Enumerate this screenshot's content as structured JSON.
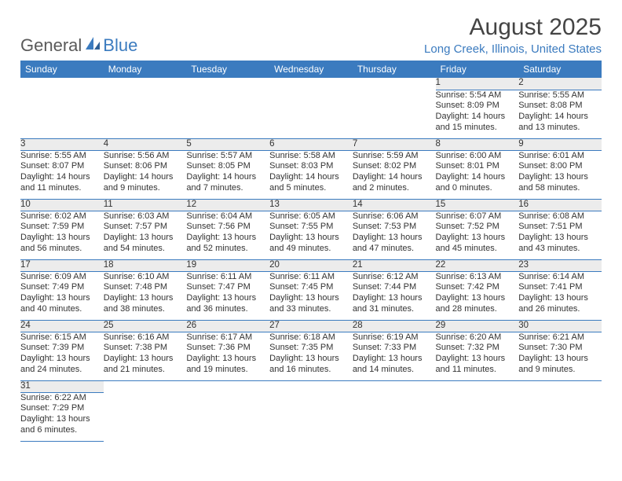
{
  "logo": {
    "text_left": "General",
    "text_right": "Blue",
    "accent_color": "#3b7bbf"
  },
  "title": {
    "month": "August 2025",
    "location": "Long Creek, Illinois, United States"
  },
  "colors": {
    "header_bg": "#3b7bbf",
    "header_text": "#ffffff",
    "daynum_bg": "#ececec",
    "row_border": "#3b7bbf"
  },
  "weekdays": [
    "Sunday",
    "Monday",
    "Tuesday",
    "Wednesday",
    "Thursday",
    "Friday",
    "Saturday"
  ],
  "weeks": [
    [
      null,
      null,
      null,
      null,
      null,
      {
        "n": "1",
        "sr": "5:54 AM",
        "ss": "8:09 PM",
        "dl": "14 hours and 15 minutes."
      },
      {
        "n": "2",
        "sr": "5:55 AM",
        "ss": "8:08 PM",
        "dl": "14 hours and 13 minutes."
      }
    ],
    [
      {
        "n": "3",
        "sr": "5:55 AM",
        "ss": "8:07 PM",
        "dl": "14 hours and 11 minutes."
      },
      {
        "n": "4",
        "sr": "5:56 AM",
        "ss": "8:06 PM",
        "dl": "14 hours and 9 minutes."
      },
      {
        "n": "5",
        "sr": "5:57 AM",
        "ss": "8:05 PM",
        "dl": "14 hours and 7 minutes."
      },
      {
        "n": "6",
        "sr": "5:58 AM",
        "ss": "8:03 PM",
        "dl": "14 hours and 5 minutes."
      },
      {
        "n": "7",
        "sr": "5:59 AM",
        "ss": "8:02 PM",
        "dl": "14 hours and 2 minutes."
      },
      {
        "n": "8",
        "sr": "6:00 AM",
        "ss": "8:01 PM",
        "dl": "14 hours and 0 minutes."
      },
      {
        "n": "9",
        "sr": "6:01 AM",
        "ss": "8:00 PM",
        "dl": "13 hours and 58 minutes."
      }
    ],
    [
      {
        "n": "10",
        "sr": "6:02 AM",
        "ss": "7:59 PM",
        "dl": "13 hours and 56 minutes."
      },
      {
        "n": "11",
        "sr": "6:03 AM",
        "ss": "7:57 PM",
        "dl": "13 hours and 54 minutes."
      },
      {
        "n": "12",
        "sr": "6:04 AM",
        "ss": "7:56 PM",
        "dl": "13 hours and 52 minutes."
      },
      {
        "n": "13",
        "sr": "6:05 AM",
        "ss": "7:55 PM",
        "dl": "13 hours and 49 minutes."
      },
      {
        "n": "14",
        "sr": "6:06 AM",
        "ss": "7:53 PM",
        "dl": "13 hours and 47 minutes."
      },
      {
        "n": "15",
        "sr": "6:07 AM",
        "ss": "7:52 PM",
        "dl": "13 hours and 45 minutes."
      },
      {
        "n": "16",
        "sr": "6:08 AM",
        "ss": "7:51 PM",
        "dl": "13 hours and 43 minutes."
      }
    ],
    [
      {
        "n": "17",
        "sr": "6:09 AM",
        "ss": "7:49 PM",
        "dl": "13 hours and 40 minutes."
      },
      {
        "n": "18",
        "sr": "6:10 AM",
        "ss": "7:48 PM",
        "dl": "13 hours and 38 minutes."
      },
      {
        "n": "19",
        "sr": "6:11 AM",
        "ss": "7:47 PM",
        "dl": "13 hours and 36 minutes."
      },
      {
        "n": "20",
        "sr": "6:11 AM",
        "ss": "7:45 PM",
        "dl": "13 hours and 33 minutes."
      },
      {
        "n": "21",
        "sr": "6:12 AM",
        "ss": "7:44 PM",
        "dl": "13 hours and 31 minutes."
      },
      {
        "n": "22",
        "sr": "6:13 AM",
        "ss": "7:42 PM",
        "dl": "13 hours and 28 minutes."
      },
      {
        "n": "23",
        "sr": "6:14 AM",
        "ss": "7:41 PM",
        "dl": "13 hours and 26 minutes."
      }
    ],
    [
      {
        "n": "24",
        "sr": "6:15 AM",
        "ss": "7:39 PM",
        "dl": "13 hours and 24 minutes."
      },
      {
        "n": "25",
        "sr": "6:16 AM",
        "ss": "7:38 PM",
        "dl": "13 hours and 21 minutes."
      },
      {
        "n": "26",
        "sr": "6:17 AM",
        "ss": "7:36 PM",
        "dl": "13 hours and 19 minutes."
      },
      {
        "n": "27",
        "sr": "6:18 AM",
        "ss": "7:35 PM",
        "dl": "13 hours and 16 minutes."
      },
      {
        "n": "28",
        "sr": "6:19 AM",
        "ss": "7:33 PM",
        "dl": "13 hours and 14 minutes."
      },
      {
        "n": "29",
        "sr": "6:20 AM",
        "ss": "7:32 PM",
        "dl": "13 hours and 11 minutes."
      },
      {
        "n": "30",
        "sr": "6:21 AM",
        "ss": "7:30 PM",
        "dl": "13 hours and 9 minutes."
      }
    ],
    [
      {
        "n": "31",
        "sr": "6:22 AM",
        "ss": "7:29 PM",
        "dl": "13 hours and 6 minutes."
      },
      null,
      null,
      null,
      null,
      null,
      null
    ]
  ],
  "labels": {
    "sunrise": "Sunrise:",
    "sunset": "Sunset:",
    "daylight": "Daylight:"
  }
}
